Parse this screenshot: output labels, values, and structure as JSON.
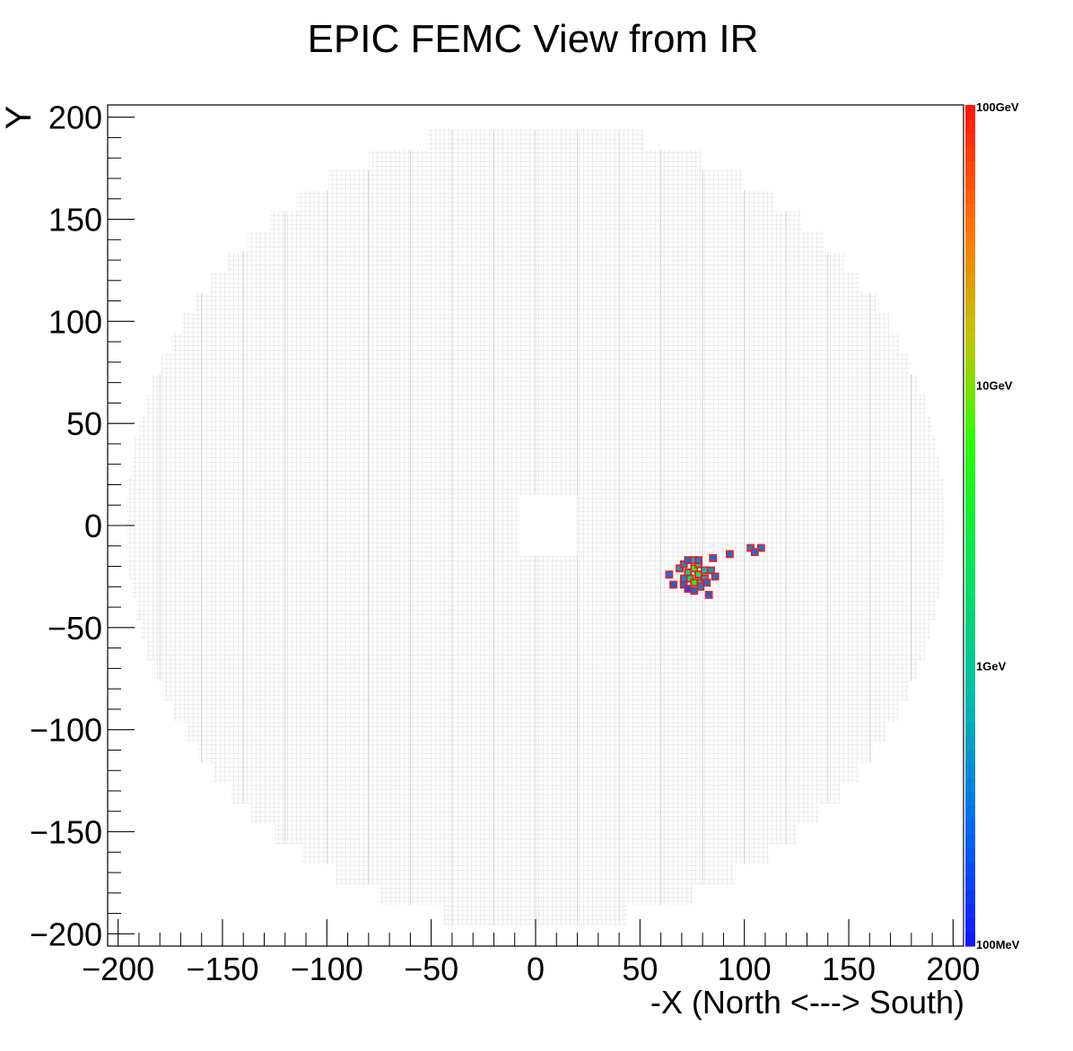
{
  "chart_data": {
    "type": "heatmap",
    "title": "EPIC FEMC View from IR",
    "xlabel": "-X (North <---> South)",
    "ylabel": "Y",
    "xlim": [
      -205,
      205
    ],
    "ylim": [
      -206,
      206
    ],
    "x_ticks": [
      "−200",
      "−150",
      "−100",
      "−50",
      "0",
      "50",
      "100",
      "150",
      "200"
    ],
    "y_ticks": [
      "200",
      "150",
      "100",
      "50",
      "0",
      "−50",
      "−100",
      "−150",
      "−200"
    ],
    "grid": false,
    "colorbar": {
      "scale": "log",
      "range_gev": [
        0.1,
        100
      ],
      "labels": [
        "100GeV",
        "10GeV",
        "1GeV",
        "100MeV"
      ],
      "label_values_gev": [
        100,
        10,
        1,
        0.1
      ]
    },
    "detector": {
      "outer_radius_approx": 196,
      "beam_hole_x": [
        -7.5,
        20
      ],
      "beam_hole_y": [
        -15,
        15
      ],
      "tower_color": "#d2d2d2"
    },
    "hits": [
      {
        "x": 64,
        "y": -24,
        "e": 0.3
      },
      {
        "x": 66,
        "y": -29,
        "e": 0.25
      },
      {
        "x": 69,
        "y": -21,
        "e": 0.6
      },
      {
        "x": 71,
        "y": -26,
        "e": 0.4
      },
      {
        "x": 71,
        "y": -29,
        "e": 0.3
      },
      {
        "x": 71,
        "y": -19,
        "e": 0.5
      },
      {
        "x": 73,
        "y": -17,
        "e": 0.3
      },
      {
        "x": 73,
        "y": -23,
        "e": 1.5
      },
      {
        "x": 73,
        "y": -31,
        "e": 0.2
      },
      {
        "x": 74,
        "y": -26,
        "e": 2.5
      },
      {
        "x": 76,
        "y": -21,
        "e": 8.0
      },
      {
        "x": 76,
        "y": -28,
        "e": 5.0
      },
      {
        "x": 76,
        "y": -17,
        "e": 0.8
      },
      {
        "x": 76,
        "y": -32,
        "e": 0.3
      },
      {
        "x": 78,
        "y": -24,
        "e": 3.0
      },
      {
        "x": 78,
        "y": -19,
        "e": 1.2
      },
      {
        "x": 78,
        "y": -17,
        "e": 0.35
      },
      {
        "x": 79,
        "y": -28,
        "e": 1.0
      },
      {
        "x": 79,
        "y": -30,
        "e": 0.4
      },
      {
        "x": 81,
        "y": -22,
        "e": 0.9
      },
      {
        "x": 81,
        "y": -26,
        "e": 0.6
      },
      {
        "x": 82,
        "y": -28,
        "e": 0.3
      },
      {
        "x": 83,
        "y": -34,
        "e": 0.25
      },
      {
        "x": 84,
        "y": -22,
        "e": 0.5
      },
      {
        "x": 85,
        "y": -16,
        "e": 0.3
      },
      {
        "x": 86,
        "y": -25,
        "e": 0.35
      },
      {
        "x": 93,
        "y": -14,
        "e": 0.3
      },
      {
        "x": 103,
        "y": -11,
        "e": 0.4
      },
      {
        "x": 105,
        "y": -13,
        "e": 0.3
      },
      {
        "x": 108,
        "y": -11,
        "e": 0.35
      }
    ]
  }
}
